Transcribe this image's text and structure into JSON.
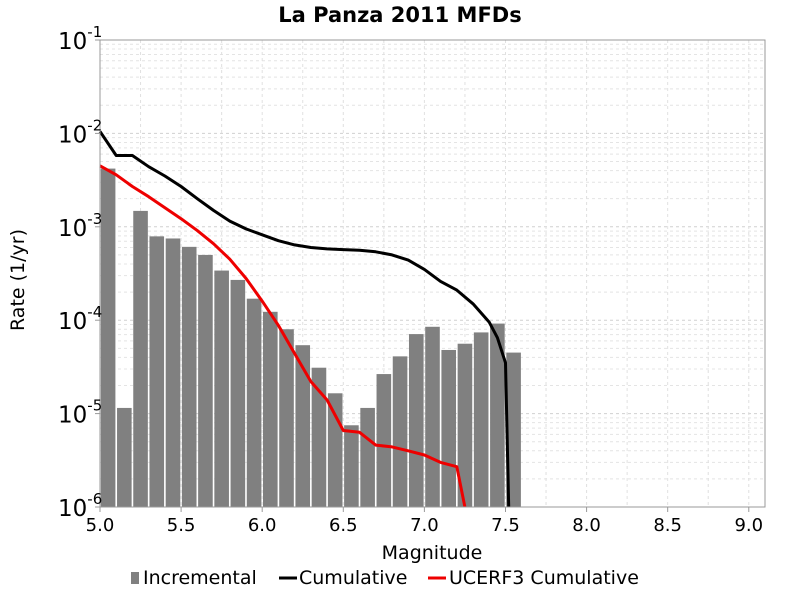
{
  "chart_data": {
    "type": "bar",
    "title": "La Panza 2011 MFDs",
    "xlabel": "Magnitude",
    "ylabel": "Rate (1/yr)",
    "x_scale": "linear",
    "y_scale": "log",
    "xlim": [
      5.0,
      9.1
    ],
    "ylim": [
      1e-06,
      0.1
    ],
    "xticks": [
      "5.0",
      "5.5",
      "6.0",
      "6.5",
      "7.0",
      "7.5",
      "8.0",
      "8.5",
      "9.0"
    ],
    "yticks": [
      {
        "base": "10",
        "exp": "-1"
      },
      {
        "base": "10",
        "exp": "-2"
      },
      {
        "base": "10",
        "exp": "-3"
      },
      {
        "base": "10",
        "exp": "-4"
      },
      {
        "base": "10",
        "exp": "-5"
      },
      {
        "base": "10",
        "exp": "-6"
      }
    ],
    "grid": true,
    "legend_position": "bottom",
    "series": [
      {
        "name": "Incremental",
        "kind": "bar",
        "color": "#808080",
        "bar_width": 0.09,
        "x": [
          5.05,
          5.15,
          5.25,
          5.35,
          5.45,
          5.55,
          5.65,
          5.75,
          5.85,
          5.95,
          6.05,
          6.15,
          6.25,
          6.35,
          6.45,
          6.55,
          6.65,
          6.75,
          6.85,
          6.95,
          7.05,
          7.15,
          7.25,
          7.35,
          7.45,
          7.55
        ],
        "y": [
          0.0042,
          1.15e-05,
          0.00148,
          0.00079,
          0.00075,
          0.00061,
          0.0005,
          0.00034,
          0.00027,
          0.00017,
          0.000123,
          8e-05,
          5.4e-05,
          3.1e-05,
          1.65e-05,
          7.5e-06,
          1.15e-05,
          2.65e-05,
          4.1e-05,
          7.1e-05,
          8.5e-05,
          4.8e-05,
          5.6e-05,
          7.4e-05,
          9.2e-05,
          4.5e-05
        ]
      },
      {
        "name": "Cumulative",
        "kind": "line",
        "color": "#000000",
        "x": [
          5.0,
          5.1,
          5.2,
          5.3,
          5.4,
          5.5,
          5.6,
          5.7,
          5.8,
          5.9,
          6.0,
          6.1,
          6.2,
          6.3,
          6.4,
          6.5,
          6.6,
          6.7,
          6.8,
          6.9,
          7.0,
          7.1,
          7.2,
          7.3,
          7.4,
          7.45,
          7.5,
          7.52
        ],
        "y": [
          0.0105,
          0.0058,
          0.0058,
          0.0044,
          0.0035,
          0.0027,
          0.002,
          0.0015,
          0.00115,
          0.00095,
          0.00082,
          0.00071,
          0.00064,
          0.0006,
          0.00058,
          0.00057,
          0.00056,
          0.00054,
          0.0005,
          0.00044,
          0.00035,
          0.00026,
          0.00021,
          0.00015,
          9.5e-05,
          6.5e-05,
          3.5e-05,
          1e-06
        ]
      },
      {
        "name": "UCERF3 Cumulative",
        "kind": "line",
        "color": "#ee0000",
        "x": [
          5.0,
          5.1,
          5.2,
          5.3,
          5.4,
          5.5,
          5.6,
          5.7,
          5.8,
          5.9,
          6.0,
          6.1,
          6.2,
          6.3,
          6.4,
          6.5,
          6.6,
          6.7,
          6.8,
          6.9,
          7.0,
          7.1,
          7.2,
          7.25
        ],
        "y": [
          0.0045,
          0.0036,
          0.0027,
          0.0021,
          0.0016,
          0.00122,
          0.00091,
          0.00066,
          0.00045,
          0.00028,
          0.00016,
          8.8e-05,
          4.4e-05,
          2.2e-05,
          1.4e-05,
          6.6e-06,
          6.3e-06,
          4.6e-06,
          4.4e-06,
          4e-06,
          3.6e-06,
          3e-06,
          2.7e-06,
          1e-06
        ]
      }
    ]
  }
}
